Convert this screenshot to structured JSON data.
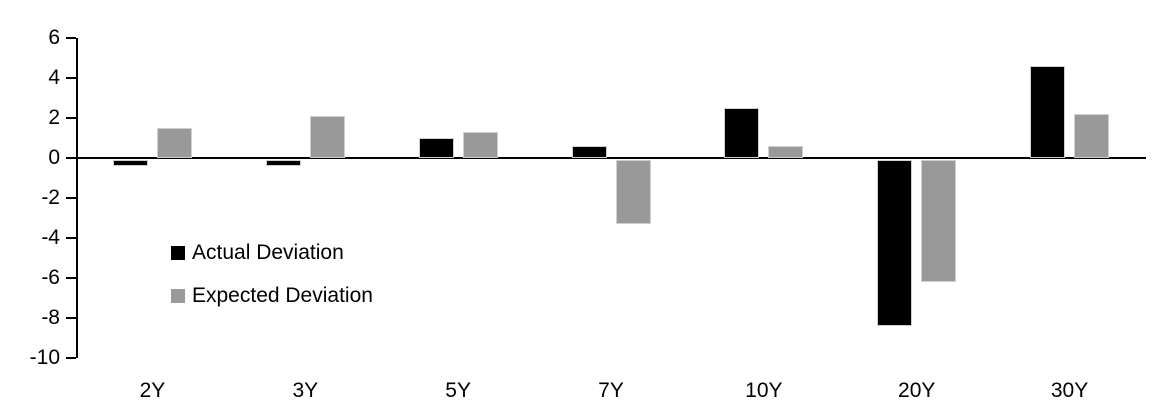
{
  "chart_data": {
    "type": "bar",
    "categories": [
      "2Y",
      "3Y",
      "5Y",
      "7Y",
      "10Y",
      "20Y",
      "30Y"
    ],
    "series": [
      {
        "name": "Actual Deviation",
        "color": "#000000",
        "values": [
          -0.3,
          -0.3,
          1.0,
          0.6,
          2.5,
          -8.3,
          4.6
        ]
      },
      {
        "name": "Expected Deviation",
        "color": "#999999",
        "values": [
          1.5,
          2.1,
          1.3,
          -3.2,
          0.6,
          -6.1,
          2.2
        ]
      }
    ],
    "title": "",
    "xlabel": "",
    "ylabel": "",
    "ylim": [
      -10,
      6
    ],
    "yticks": [
      6,
      4,
      2,
      0,
      -2,
      -4,
      -6,
      -8,
      -10
    ],
    "grid": false,
    "legend_position": "inside-left",
    "background": "#ffffff",
    "axis_color": "#000000",
    "bar_border_color": "#cfcfcf"
  }
}
